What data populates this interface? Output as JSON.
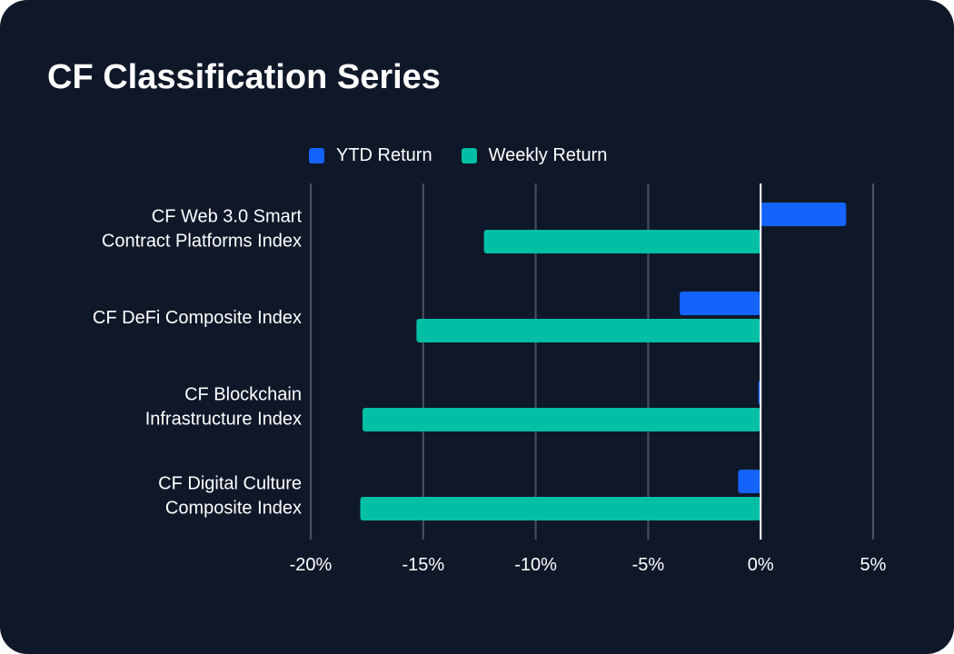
{
  "chart_data": {
    "type": "bar",
    "orientation": "horizontal",
    "title": "CF Classification Series",
    "categories": [
      [
        "CF Web 3.0 Smart",
        "Contract Platforms Index"
      ],
      [
        "CF DeFi Composite Index"
      ],
      [
        "CF Blockchain",
        "Infrastructure Index"
      ],
      [
        "CF Digital Culture",
        "Composite Index"
      ]
    ],
    "series": [
      {
        "name": "YTD Return",
        "color": "#1463ff",
        "values": [
          3.8,
          -3.6,
          -0.1,
          -1.0
        ]
      },
      {
        "name": "Weekly Return",
        "color": "#00bfa5",
        "values": [
          -12.3,
          -15.3,
          -17.7,
          -17.8
        ]
      }
    ],
    "xlim": [
      -20,
      5
    ],
    "xticks": [
      -20,
      -15,
      -10,
      -5,
      0,
      5
    ],
    "xtick_labels": [
      "-20%",
      "-15%",
      "-10%",
      "-5%",
      "0%",
      "5%"
    ],
    "grid": true,
    "legend_position": "top"
  },
  "colors": {
    "background": "#0f1829",
    "grid": "#4a5260",
    "zero_line": "#ffffff",
    "text": "#ffffff"
  }
}
